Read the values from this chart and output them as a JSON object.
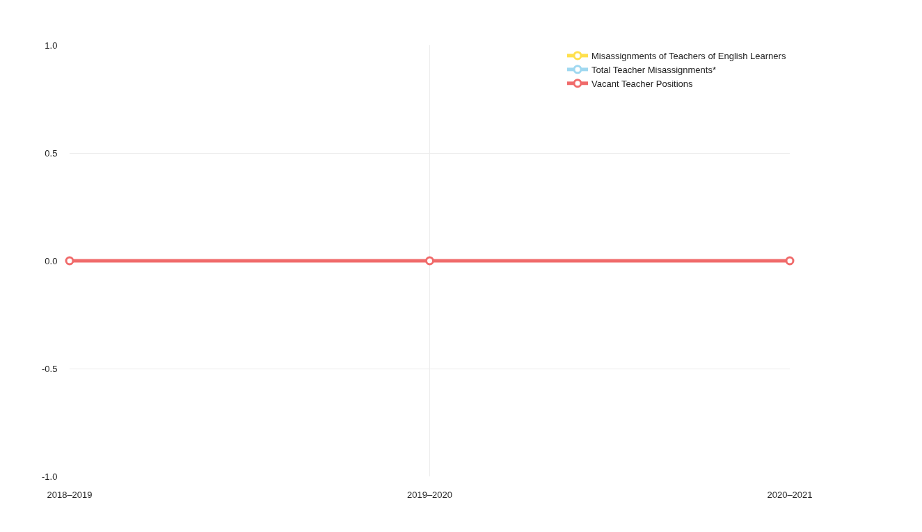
{
  "chart_data": {
    "type": "line",
    "categories": [
      "2018–2019",
      "2019–2020",
      "2020–2021"
    ],
    "series": [
      {
        "name": "Misassignments of Teachers of English Learners",
        "color": "#ffe04d",
        "values": [
          null,
          null,
          null
        ]
      },
      {
        "name": "Total Teacher Misassignments*",
        "color": "#9fd8f0",
        "values": [
          null,
          null,
          null
        ]
      },
      {
        "name": "Vacant Teacher Positions",
        "color": "#f06b6b",
        "values": [
          0,
          0,
          0
        ]
      }
    ],
    "ylim": [
      -1,
      1
    ],
    "yticks": [
      {
        "value": -1,
        "label": "-1.0"
      },
      {
        "value": -0.5,
        "label": "-0.5"
      },
      {
        "value": 0,
        "label": "0.0"
      },
      {
        "value": 0.5,
        "label": "0.5"
      },
      {
        "value": 1,
        "label": "1.0"
      }
    ],
    "grid": true,
    "legend": "top right",
    "marker": "circle",
    "line_style": "solid"
  }
}
